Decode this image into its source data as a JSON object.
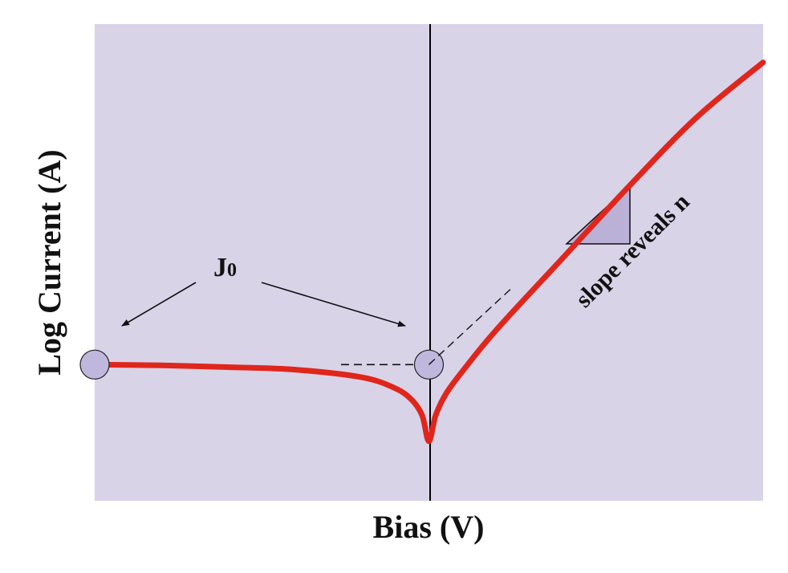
{
  "chart_data": {
    "type": "line",
    "xlabel": "Bias (V)",
    "ylabel": "Log Current (A)",
    "grid": false,
    "legend": "none",
    "series": [
      {
        "x": [
          -1.0,
          -0.8,
          -0.6,
          -0.4,
          -0.2,
          -0.1,
          -0.05,
          -0.02,
          0.0,
          0.02,
          0.05,
          0.1,
          0.2,
          0.4,
          0.6,
          0.8,
          1.0
        ],
        "y": [
          0.0,
          -0.01,
          -0.03,
          -0.06,
          -0.15,
          -0.28,
          -0.42,
          -0.6,
          -0.9,
          -0.6,
          -0.35,
          -0.08,
          0.4,
          1.25,
          2.1,
          2.9,
          3.55
        ]
      }
    ],
    "annotations": {
      "j0_label": "J",
      "j0_subscript": "0",
      "slope_label": "slope reveals n"
    },
    "colors": {
      "plot_background": "#d9d3e8",
      "curve": "#e0261c",
      "marker_fill": "#c0b8dc",
      "triangle_fill": "#bbb0d6",
      "axis_line": "#000000"
    }
  }
}
